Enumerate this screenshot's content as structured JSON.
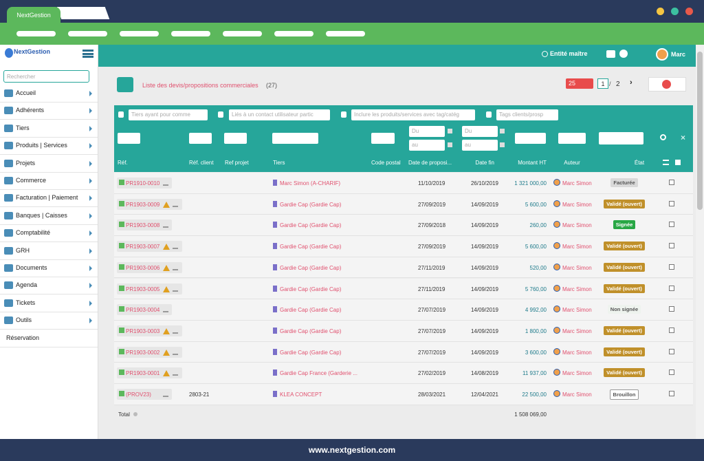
{
  "browser": {
    "tab": "NextGestion"
  },
  "sidebar": {
    "logo": "NextGestion",
    "search_placeholder": "Rechercher",
    "menu": [
      "Accueil",
      "Adhérents",
      "Tiers",
      "Produits | Services",
      "Projets",
      "Commerce",
      "Facturation | Paiement",
      "Banques | Caisses",
      "Comptabilité",
      "GRH",
      "Documents",
      "Agenda",
      "Tickets",
      "Outils",
      "Réservation"
    ]
  },
  "topbar": {
    "entity": "Entité maître",
    "user": "Marc"
  },
  "page": {
    "title": "Liste des devis/propositions commerciales",
    "count": "(27)",
    "per_page": "25",
    "current_page": "1",
    "page_sep": "/",
    "total_pages": "2"
  },
  "filters": {
    "tiers": "Tiers ayant pour comme",
    "contact": "Liés à un contact utilisateur partic",
    "products": "Inclure les produits/services avec tag/catég",
    "tags": "Tags clients/prosp",
    "date_from": "Du",
    "date_to": "au",
    "end_from": "Du",
    "end_to": "au"
  },
  "table": {
    "headers": [
      "Réf.",
      "Réf. client",
      "Ref projet",
      "Tiers",
      "Code postal",
      "Date de proposi...",
      "Date fin",
      "Montant HT",
      "Auteur",
      "État"
    ],
    "rows": [
      {
        "ref": "PR1910-0010",
        "tiers": "Marc Simon (A-CHARIF)",
        "date": "11/10/2019",
        "end": "26/10/2019",
        "amount": "1 321 000,00",
        "author": "Marc Simon",
        "state": "Facturée",
        "state_color": "#d9d9d9",
        "warn": false
      },
      {
        "ref": "PR1903-0009",
        "tiers": "Gardie Cap (Gardie Cap)",
        "date": "27/09/2019",
        "end": "14/09/2019",
        "amount": "5 600,00",
        "author": "Marc Simon",
        "state": "Validé (ouvert)",
        "state_color": "#c0902a",
        "warn": true
      },
      {
        "ref": "PR1903-0008",
        "tiers": "Gardie Cap (Gardie Cap)",
        "date": "27/09/2018",
        "end": "14/09/2019",
        "amount": "260,00",
        "author": "Marc Simon",
        "state": "Signée",
        "state_color": "#28a745",
        "warn": false
      },
      {
        "ref": "PR1903-0007",
        "tiers": "Gardie Cap (Gardie Cap)",
        "date": "27/09/2019",
        "end": "14/09/2019",
        "amount": "5 600,00",
        "author": "Marc Simon",
        "state": "Validé (ouvert)",
        "state_color": "#c0902a",
        "warn": true
      },
      {
        "ref": "PR1903-0006",
        "tiers": "Gardie Cap (Gardie Cap)",
        "date": "27/11/2019",
        "end": "14/09/2019",
        "amount": "520,00",
        "author": "Marc Simon",
        "state": "Validé (ouvert)",
        "state_color": "#c0902a",
        "warn": true
      },
      {
        "ref": "PR1903-0005",
        "tiers": "Gardie Cap (Gardie Cap)",
        "date": "27/11/2019",
        "end": "14/09/2019",
        "amount": "5 760,00",
        "author": "Marc Simon",
        "state": "Validé (ouvert)",
        "state_color": "#c0902a",
        "warn": true
      },
      {
        "ref": "PR1903-0004",
        "tiers": "Gardie Cap (Gardie Cap)",
        "date": "27/07/2019",
        "end": "14/09/2019",
        "amount": "4 992,00",
        "author": "Marc Simon",
        "state": "Non signée",
        "state_color": "#eef3ee",
        "warn": false
      },
      {
        "ref": "PR1903-0003",
        "tiers": "Gardie Cap (Gardie Cap)",
        "date": "27/07/2019",
        "end": "14/09/2019",
        "amount": "1 800,00",
        "author": "Marc Simon",
        "state": "Validé (ouvert)",
        "state_color": "#c0902a",
        "warn": true
      },
      {
        "ref": "PR1903-0002",
        "tiers": "Gardie Cap (Gardie Cap)",
        "date": "27/07/2019",
        "end": "14/09/2019",
        "amount": "3 600,00",
        "author": "Marc Simon",
        "state": "Validé (ouvert)",
        "state_color": "#c0902a",
        "warn": true
      },
      {
        "ref": "PR1903-0001",
        "tiers": "Gardie Cap France (Garderie ...",
        "date": "27/02/2019",
        "end": "14/08/2019",
        "amount": "11 937,00",
        "author": "Marc Simon",
        "state": "Validé (ouvert)",
        "state_color": "#c0902a",
        "warn": true
      },
      {
        "ref": "(PROV23)",
        "client_ref": "2803-21",
        "tiers": "KLEA CONCEPT",
        "date": "28/03/2021",
        "end": "12/04/2021",
        "amount": "22 500,00",
        "author": "Marc Simon",
        "state": "Brouillon",
        "state_color": "#ffffff",
        "warn": false
      }
    ],
    "total_label": "Total",
    "total_amount": "1 508 069,00"
  },
  "footer": {
    "url": "www.nextgestion.com"
  }
}
